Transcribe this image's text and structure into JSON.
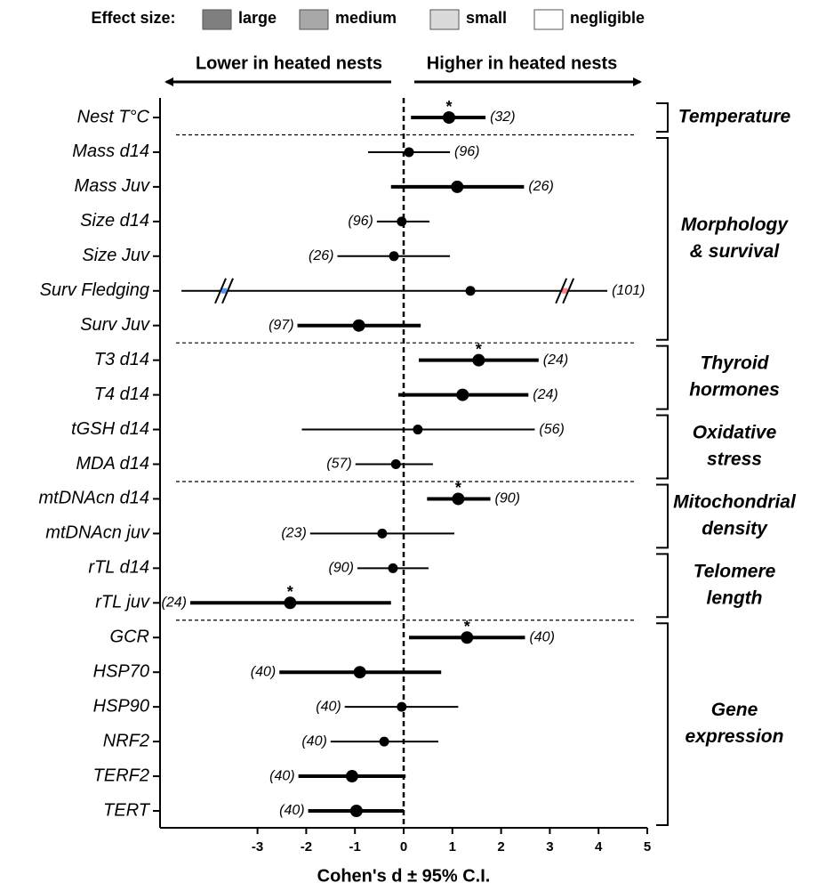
{
  "chart_data": {
    "type": "forest",
    "xlabel": "Cohen's d ± 95% C.I.",
    "xlim": [
      -5,
      5
    ],
    "xticks": [
      -3,
      -2,
      -1,
      0,
      1,
      2,
      3,
      4,
      5
    ],
    "zero_line": true,
    "direction_left": "Lower in heated nests",
    "direction_right": "Higher in heated nests",
    "legend_title": "Effect size:",
    "effect_sizes": [
      {
        "name": "large",
        "color": "#7f7f7f",
        "from": 0.8,
        "negative_color": "#5599f6",
        "positive_color": "#ff8282"
      },
      {
        "name": "medium",
        "color": "#a8a8a8",
        "from": 0.5,
        "negative_color": "#8cb9f5",
        "positive_color": "#ffb0b0"
      },
      {
        "name": "small",
        "color": "#dadada",
        "from": 0.2,
        "negative_color": "#c6dbf7",
        "positive_color": "#ffd7d7"
      },
      {
        "name": "negligible",
        "color": "#ffffff",
        "from": 0,
        "negative_color": "#ffffff",
        "positive_color": "#ffffff"
      }
    ],
    "categories": [
      "Nest T°C",
      "Mass d14",
      "Mass Juv",
      "Size d14",
      "Size Juv",
      "Surv Fledging",
      "Surv Juv",
      "T3 d14",
      "T4 d14",
      "tGSH d14",
      "MDA d14",
      "mtDNAcn d14",
      "mtDNAcn juv",
      "rTL d14",
      "rTL juv",
      "GCR",
      "HSP70",
      "HSP90",
      "NRF2",
      "TERF2",
      "TERT"
    ],
    "values": [
      0.93,
      0.11,
      1.1,
      -0.04,
      -0.2,
      1.37,
      -0.92,
      1.54,
      1.21,
      0.29,
      -0.16,
      1.12,
      -0.44,
      -0.22,
      -2.33,
      1.3,
      -0.9,
      -0.04,
      -0.4,
      -1.06,
      -0.97
    ],
    "lower": [
      0.15,
      -0.73,
      -0.26,
      -0.55,
      -1.36,
      -4.56,
      -2.18,
      0.31,
      -0.11,
      -2.09,
      -0.99,
      0.48,
      -1.92,
      -0.95,
      -4.38,
      0.11,
      -2.55,
      -1.21,
      -1.5,
      -2.16,
      -1.96
    ],
    "upper": [
      1.68,
      0.95,
      2.47,
      0.53,
      0.95,
      4.18,
      0.35,
      2.77,
      2.56,
      2.69,
      0.6,
      1.78,
      1.04,
      0.51,
      -0.26,
      2.49,
      0.77,
      1.12,
      0.71,
      0.04,
      0.0
    ],
    "n_labels": [
      "(32)",
      "(96)",
      "(26)",
      "(96)",
      "(26)",
      "(101)",
      "(97)",
      "(24)",
      "(24)",
      "(56)",
      "(57)",
      "(90)",
      "(23)",
      "(90)",
      "(24)",
      "(40)",
      "(40)",
      "(40)",
      "(40)",
      "(40)",
      "(40)"
    ],
    "significance_label": "*",
    "significant": [
      true,
      false,
      false,
      false,
      false,
      false,
      false,
      true,
      false,
      false,
      false,
      true,
      false,
      false,
      true,
      true,
      false,
      false,
      false,
      false,
      false
    ],
    "thick": [
      true,
      false,
      true,
      false,
      false,
      false,
      true,
      true,
      true,
      false,
      false,
      true,
      false,
      false,
      true,
      true,
      true,
      false,
      false,
      true,
      true
    ],
    "broken": [
      false,
      false,
      false,
      false,
      false,
      true,
      false,
      false,
      false,
      false,
      false,
      false,
      false,
      false,
      false,
      false,
      false,
      false,
      false,
      false,
      false
    ],
    "groups": [
      {
        "label": [
          "Temperature"
        ],
        "start": 0,
        "end": 0,
        "dashed_line_after": true
      },
      {
        "label": [
          "Morphology",
          "& survival"
        ],
        "start": 1,
        "end": 6,
        "dashed_line_after": true
      },
      {
        "label": [
          "Thyroid",
          "hormones"
        ],
        "start": 7,
        "end": 8,
        "dashed_line_after": false
      },
      {
        "label": [
          "Oxidative",
          "stress"
        ],
        "start": 9,
        "end": 10,
        "dashed_line_after": true
      },
      {
        "label": [
          "Mitochondrial",
          "density"
        ],
        "start": 11,
        "end": 12,
        "dashed_line_after": false
      },
      {
        "label": [
          "Telomere",
          "length"
        ],
        "start": 13,
        "end": 14,
        "dashed_line_after": true
      },
      {
        "label": [
          "Gene",
          "expression"
        ],
        "start": 15,
        "end": 20,
        "dashed_line_after": false
      }
    ]
  }
}
